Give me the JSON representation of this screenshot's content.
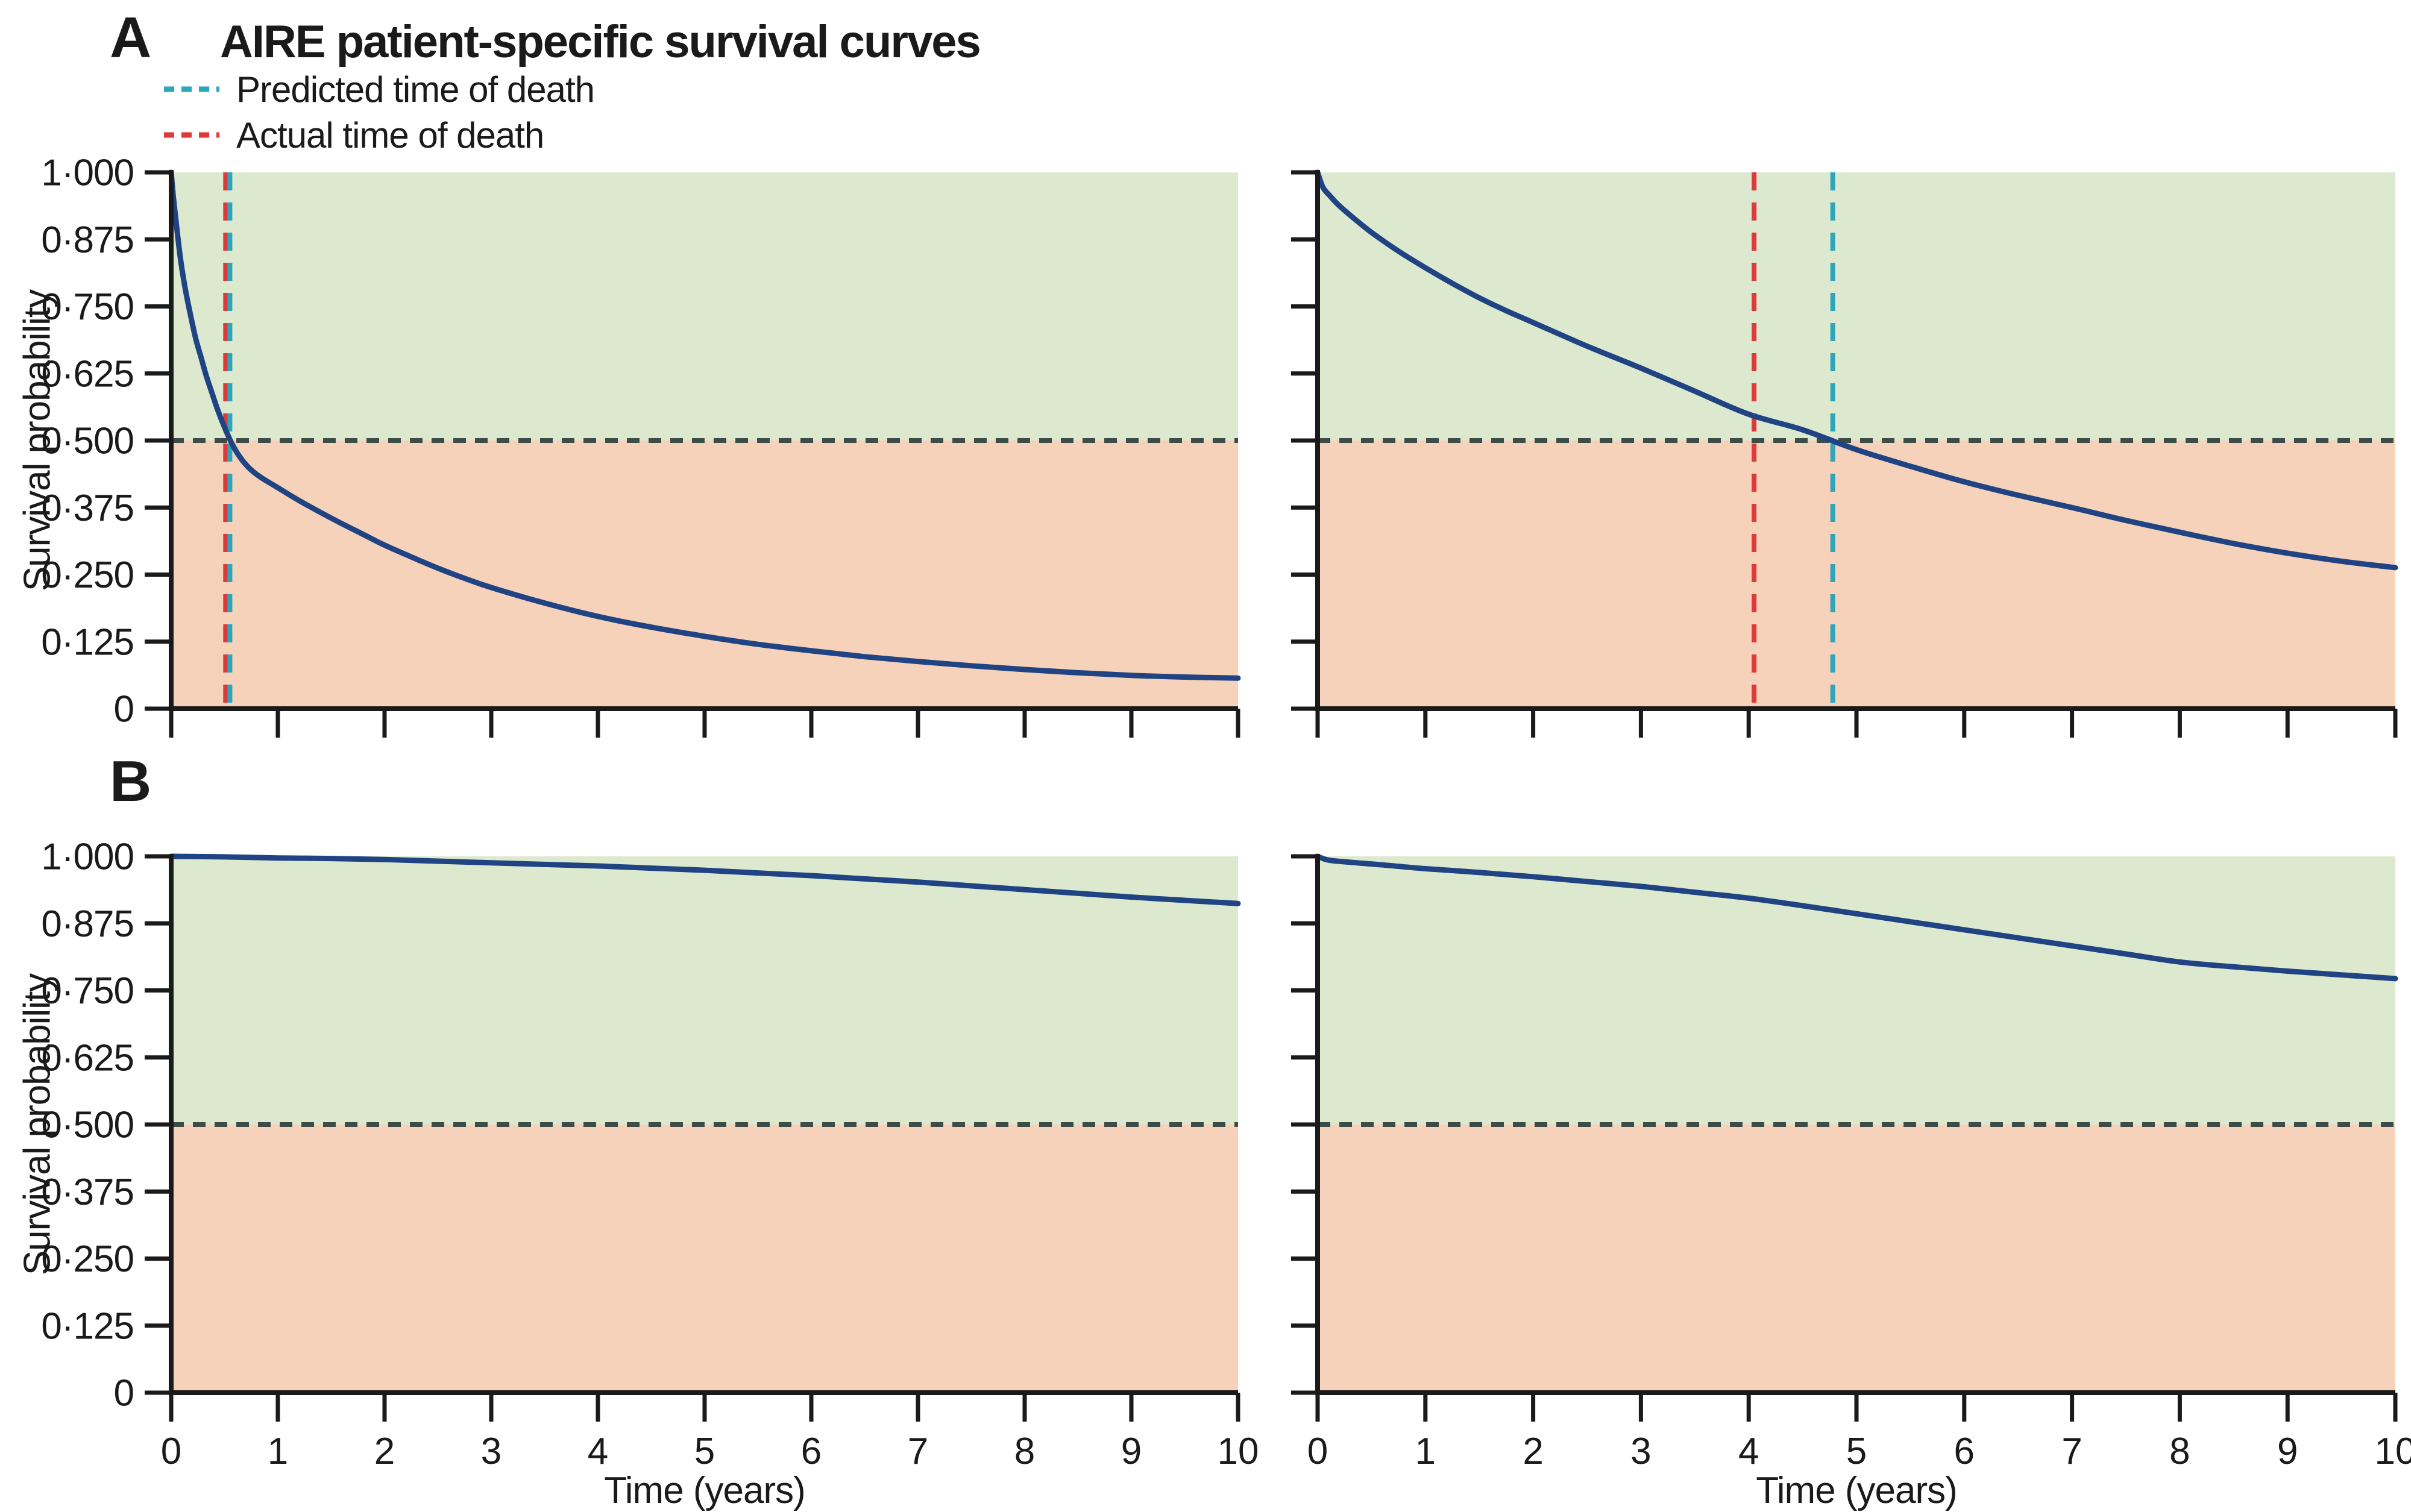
{
  "figure": {
    "panel_a": {
      "label": "A",
      "title": "AIRE patient-specific survival curves"
    },
    "panel_b": {
      "label": "B"
    },
    "legend": {
      "items": [
        {
          "label": "Predicted time of death",
          "color": "#2ba6bd"
        },
        {
          "label": "Actual time of death",
          "color": "#dd3a3c"
        }
      ]
    }
  },
  "colors": {
    "curve": "#1f4383",
    "above_threshold_bg": "#dde9cf",
    "below_threshold_bg": "#f6d2ba",
    "threshold_line": "#3e4c48",
    "predicted_line": "#2ba6bd",
    "actual_line": "#dd3a3c",
    "axis": "#1a1a1a"
  },
  "chart_data": [
    {
      "id": "A-left",
      "type": "line",
      "panel": "A",
      "xlabel": "",
      "ylabel": "Survival probability",
      "xlim": [
        0,
        10
      ],
      "ylim": [
        0,
        1
      ],
      "xticks": [
        0,
        1,
        2,
        3,
        4,
        5,
        6,
        7,
        8,
        9,
        10
      ],
      "xtick_labels": [
        "0",
        "1",
        "2",
        "3",
        "4",
        "5",
        "6",
        "7",
        "8",
        "9",
        "10"
      ],
      "yticks": [
        0,
        0.125,
        0.25,
        0.375,
        0.5,
        0.625,
        0.75,
        0.875,
        1.0
      ],
      "ytick_labels": [
        "0",
        "0·125",
        "0·250",
        "0·375",
        "0·500",
        "0·625",
        "0·750",
        "0·875",
        "1·000"
      ],
      "threshold": 0.5,
      "predicted_time_of_death": 0.55,
      "actual_time_of_death": 0.51,
      "series": [
        {
          "name": "survival-curve",
          "x": [
            0,
            0.02,
            0.05,
            0.09,
            0.13,
            0.18,
            0.23,
            0.28,
            0.33,
            0.38,
            0.44,
            0.51,
            0.58,
            0.66,
            0.75,
            0.85,
            1.0,
            1.2,
            1.4,
            1.6,
            1.8,
            2.0,
            2.25,
            2.5,
            2.75,
            3.0,
            3.5,
            4.0,
            4.5,
            5.0,
            5.5,
            6.0,
            6.5,
            7.0,
            7.5,
            8.0,
            8.5,
            9.0,
            9.5,
            10.0
          ],
          "y": [
            1.0,
            0.955,
            0.9,
            0.835,
            0.785,
            0.735,
            0.69,
            0.655,
            0.62,
            0.59,
            0.555,
            0.52,
            0.49,
            0.465,
            0.445,
            0.43,
            0.412,
            0.388,
            0.366,
            0.345,
            0.325,
            0.305,
            0.283,
            0.262,
            0.243,
            0.226,
            0.197,
            0.172,
            0.152,
            0.135,
            0.12,
            0.108,
            0.097,
            0.088,
            0.08,
            0.073,
            0.067,
            0.062,
            0.059,
            0.057
          ]
        }
      ]
    },
    {
      "id": "A-right",
      "type": "line",
      "panel": "A",
      "xlabel": "",
      "ylabel": "",
      "xlim": [
        0,
        10
      ],
      "ylim": [
        0,
        1
      ],
      "xticks": [
        0,
        1,
        2,
        3,
        4,
        5,
        6,
        7,
        8,
        9,
        10
      ],
      "xtick_labels": [
        "0",
        "1",
        "2",
        "3",
        "4",
        "5",
        "6",
        "7",
        "8",
        "9",
        "10"
      ],
      "yticks": [
        0,
        0.125,
        0.25,
        0.375,
        0.5,
        0.625,
        0.75,
        0.875,
        1.0
      ],
      "ytick_labels": [
        "0",
        "0·125",
        "0·250",
        "0·375",
        "0·500",
        "0·625",
        "0·750",
        "0·875",
        "1·000"
      ],
      "threshold": 0.5,
      "predicted_time_of_death": 4.78,
      "actual_time_of_death": 4.05,
      "series": [
        {
          "name": "survival-curve",
          "x": [
            0,
            0.05,
            0.12,
            0.2,
            0.35,
            0.5,
            0.75,
            1.0,
            1.25,
            1.5,
            1.75,
            2.0,
            2.5,
            3.0,
            3.5,
            4.0,
            4.5,
            5.0,
            5.5,
            6.0,
            6.5,
            7.0,
            7.5,
            8.0,
            8.5,
            9.0,
            9.5,
            10.0
          ],
          "y": [
            1.0,
            0.972,
            0.955,
            0.938,
            0.912,
            0.888,
            0.853,
            0.822,
            0.793,
            0.766,
            0.742,
            0.72,
            0.676,
            0.635,
            0.592,
            0.549,
            0.52,
            0.483,
            0.452,
            0.423,
            0.398,
            0.375,
            0.351,
            0.329,
            0.308,
            0.29,
            0.275,
            0.263
          ]
        }
      ]
    },
    {
      "id": "B-left",
      "type": "line",
      "panel": "B",
      "xlabel": "Time (years)",
      "ylabel": "Survival probability",
      "xlim": [
        0,
        10
      ],
      "ylim": [
        0,
        1
      ],
      "xticks": [
        0,
        1,
        2,
        3,
        4,
        5,
        6,
        7,
        8,
        9,
        10
      ],
      "xtick_labels": [
        "0",
        "1",
        "2",
        "3",
        "4",
        "5",
        "6",
        "7",
        "8",
        "9",
        "10"
      ],
      "yticks": [
        0,
        0.125,
        0.25,
        0.375,
        0.5,
        0.625,
        0.75,
        0.875,
        1.0
      ],
      "ytick_labels": [
        "0",
        "0·125",
        "0·250",
        "0·375",
        "0·500",
        "0·625",
        "0·750",
        "0·875",
        "1·000"
      ],
      "threshold": 0.5,
      "predicted_time_of_death": null,
      "actual_time_of_death": null,
      "series": [
        {
          "name": "survival-curve",
          "x": [
            0,
            0.5,
            1,
            1.5,
            2,
            2.5,
            3,
            3.5,
            4,
            4.5,
            5,
            5.5,
            6,
            6.5,
            7,
            7.5,
            8,
            8.5,
            9,
            9.5,
            10
          ],
          "y": [
            1.0,
            0.999,
            0.997,
            0.996,
            0.994,
            0.991,
            0.988,
            0.985,
            0.982,
            0.978,
            0.974,
            0.969,
            0.964,
            0.958,
            0.952,
            0.945,
            0.938,
            0.931,
            0.924,
            0.918,
            0.912
          ]
        }
      ]
    },
    {
      "id": "B-right",
      "type": "line",
      "panel": "B",
      "xlabel": "Time (years)",
      "ylabel": "",
      "xlim": [
        0,
        10
      ],
      "ylim": [
        0,
        1
      ],
      "xticks": [
        0,
        1,
        2,
        3,
        4,
        5,
        6,
        7,
        8,
        9,
        10
      ],
      "xtick_labels": [
        "0",
        "1",
        "2",
        "3",
        "4",
        "5",
        "6",
        "7",
        "8",
        "9",
        "10"
      ],
      "yticks": [
        0,
        0.125,
        0.25,
        0.375,
        0.5,
        0.625,
        0.75,
        0.875,
        1.0
      ],
      "ytick_labels": [
        "0",
        "0·125",
        "0·250",
        "0·375",
        "0·500",
        "0·625",
        "0·750",
        "0·875",
        "1·000"
      ],
      "threshold": 0.5,
      "predicted_time_of_death": null,
      "actual_time_of_death": null,
      "series": [
        {
          "name": "survival-curve",
          "x": [
            0,
            0.1,
            0.3,
            0.6,
            1,
            1.5,
            2,
            2.5,
            3,
            3.5,
            4,
            4.5,
            5,
            5.5,
            6,
            6.5,
            7,
            7.5,
            8,
            8.5,
            9,
            9.5,
            10
          ],
          "y": [
            1.0,
            0.993,
            0.989,
            0.984,
            0.977,
            0.97,
            0.962,
            0.953,
            0.944,
            0.933,
            0.922,
            0.908,
            0.893,
            0.878,
            0.863,
            0.848,
            0.833,
            0.818,
            0.803,
            0.794,
            0.786,
            0.779,
            0.772
          ]
        }
      ]
    }
  ]
}
